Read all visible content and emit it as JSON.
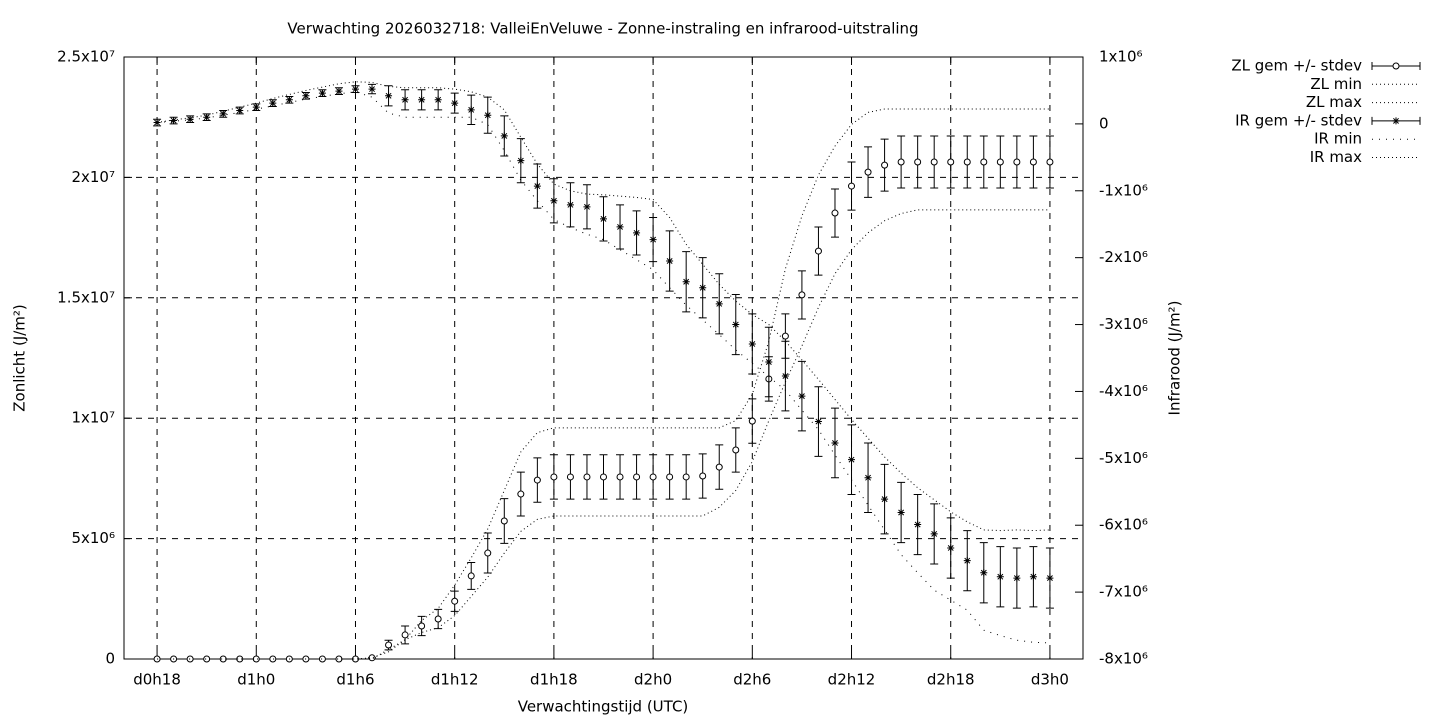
{
  "chart_data": {
    "type": "errorbar",
    "title": "Verwachting 2026032718: ValleiEnVeluwe - Zonne-instraling en infrarood-uitstraling",
    "xlabel": "Verwachtingstijd (UTC)",
    "ylabel": "Zonlicht (J/m²)",
    "y2label": "Infrarood (J/m²)",
    "x": [
      18,
      19,
      20,
      21,
      22,
      23,
      24,
      25,
      26,
      27,
      28,
      29,
      30,
      31,
      32,
      33,
      34,
      35,
      36,
      37,
      38,
      39,
      40,
      41,
      42,
      43,
      44,
      45,
      46,
      47,
      48,
      49,
      50,
      51,
      52,
      53,
      54,
      55,
      56,
      57,
      58,
      59,
      60,
      61,
      62,
      63,
      64,
      65,
      66,
      67,
      68,
      69,
      70,
      71,
      72
    ],
    "xlim": [
      16,
      74
    ],
    "xticks": [
      {
        "value": 18,
        "label": "d0h18"
      },
      {
        "value": 24,
        "label": "d1h0"
      },
      {
        "value": 30,
        "label": "d1h6"
      },
      {
        "value": 36,
        "label": "d1h12"
      },
      {
        "value": 42,
        "label": "d1h18"
      },
      {
        "value": 48,
        "label": "d2h0"
      },
      {
        "value": 54,
        "label": "d2h6"
      },
      {
        "value": 60,
        "label": "d2h12"
      },
      {
        "value": 66,
        "label": "d2h18"
      },
      {
        "value": 72,
        "label": "d3h0"
      }
    ],
    "ylim": [
      0,
      25000000
    ],
    "yticks": [
      0,
      {
        "value": 5000000,
        "label": "5x10⁶"
      },
      {
        "value": 10000000,
        "label": "1x10⁷"
      },
      {
        "value": 15000000,
        "label": "1.5x10⁷"
      },
      {
        "value": 20000000,
        "label": "2x10⁷"
      },
      {
        "value": 25000000,
        "label": "2.5x10⁷"
      }
    ],
    "y2lim": [
      -8000000,
      1000000
    ],
    "y2ticks": [
      {
        "value": -8000000,
        "label": "-8x10⁶"
      },
      {
        "value": -7000000,
        "label": "-7x10⁶"
      },
      {
        "value": -6000000,
        "label": "-6x10⁶"
      },
      {
        "value": -5000000,
        "label": "-5x10⁶"
      },
      {
        "value": -4000000,
        "label": "-4x10⁶"
      },
      {
        "value": -3000000,
        "label": "-3x10⁶"
      },
      {
        "value": -2000000,
        "label": "-2x10⁶"
      },
      {
        "value": -1000000,
        "label": "-1x10⁶"
      },
      0,
      {
        "value": 1000000,
        "label": "1x10⁶"
      }
    ],
    "grid": true,
    "legend_position": "outside-top-right",
    "series": [
      {
        "name": "ZL gem +/- stdev",
        "color": "#000000",
        "axis": "y",
        "marker": "circle",
        "style": "errorbar",
        "values": [
          0,
          0,
          0,
          0,
          0,
          0,
          0,
          0,
          0,
          0,
          0,
          0,
          0,
          50000,
          580000,
          1000000,
          1370000,
          1660000,
          2400000,
          3450000,
          4400000,
          5730000,
          6850000,
          7430000,
          7560000,
          7560000,
          7560000,
          7560000,
          7560000,
          7560000,
          7560000,
          7560000,
          7560000,
          7600000,
          7970000,
          8680000,
          9880000,
          11630000,
          13410000,
          15120000,
          16940000,
          18520000,
          19640000,
          20220000,
          20510000,
          20640000,
          20640000,
          20640000,
          20640000,
          20640000,
          20640000,
          20640000,
          20640000,
          20640000,
          20640000
        ],
        "errors": [
          0,
          0,
          0,
          0,
          0,
          0,
          0,
          0,
          0,
          0,
          0,
          0,
          0,
          0,
          200000,
          370000,
          400000,
          400000,
          420000,
          560000,
          830000,
          930000,
          910000,
          920000,
          920000,
          920000,
          920000,
          920000,
          920000,
          920000,
          920000,
          920000,
          920000,
          920000,
          920000,
          920000,
          920000,
          920000,
          920000,
          1000000,
          1000000,
          1000000,
          1000000,
          1050000,
          1080000,
          1080000,
          1080000,
          1080000,
          1080000,
          1080000,
          1080000,
          1080000,
          1080000,
          1080000,
          1080000
        ]
      },
      {
        "name": "ZL min",
        "color": "#000000",
        "axis": "y",
        "style": "dotted",
        "values": [
          0,
          0,
          0,
          0,
          0,
          0,
          0,
          0,
          0,
          0,
          0,
          0,
          0,
          0,
          400000,
          800000,
          1100000,
          1300000,
          1800000,
          2600000,
          3400000,
          4400000,
          5300000,
          5800000,
          5940000,
          5940000,
          5940000,
          5940000,
          5940000,
          5940000,
          5940000,
          5940000,
          5940000,
          5940000,
          6300000,
          7000000,
          8200000,
          9900000,
          11500000,
          13000000,
          14600000,
          16000000,
          17000000,
          17700000,
          18200000,
          18500000,
          18650000,
          18650000,
          18650000,
          18650000,
          18650000,
          18650000,
          18650000,
          18650000,
          18650000
        ]
      },
      {
        "name": "ZL max",
        "color": "#000000",
        "axis": "y",
        "style": "dotted",
        "values": [
          0,
          0,
          0,
          0,
          0,
          0,
          0,
          0,
          0,
          0,
          0,
          0,
          0,
          50000,
          300000,
          800000,
          1600000,
          2100000,
          3070000,
          4200000,
          5400000,
          7000000,
          8600000,
          9400000,
          9600000,
          9600000,
          9600000,
          9600000,
          9600000,
          9600000,
          9600000,
          9600000,
          9600000,
          9600000,
          9600000,
          9900000,
          11000000,
          13200000,
          16200000,
          18400000,
          20100000,
          21300000,
          22200000,
          22700000,
          22840000,
          22840000,
          22840000,
          22840000,
          22840000,
          22840000,
          22840000,
          22840000,
          22840000,
          22840000,
          22840000
        ]
      },
      {
        "name": "IR gem +/- stdev",
        "color": "#000000",
        "axis": "y2",
        "marker": "star",
        "style": "errorbar",
        "values": [
          20000,
          50000,
          70000,
          100000,
          150000,
          200000,
          250000,
          310000,
          360000,
          420000,
          460000,
          490000,
          520000,
          520000,
          420000,
          360000,
          360000,
          360000,
          310000,
          210000,
          130000,
          -180000,
          -550000,
          -930000,
          -1150000,
          -1210000,
          -1240000,
          -1420000,
          -1540000,
          -1630000,
          -1730000,
          -2050000,
          -2360000,
          -2450000,
          -2690000,
          -3000000,
          -3290000,
          -3560000,
          -3770000,
          -4070000,
          -4450000,
          -4770000,
          -5020000,
          -5290000,
          -5610000,
          -5810000,
          -5990000,
          -6130000,
          -6340000,
          -6530000,
          -6710000,
          -6770000,
          -6790000,
          -6770000,
          -6790000
        ],
        "errors": [
          50000,
          50000,
          50000,
          50000,
          50000,
          50000,
          50000,
          50000,
          50000,
          50000,
          50000,
          50000,
          50000,
          70000,
          150000,
          150000,
          150000,
          150000,
          150000,
          220000,
          270000,
          300000,
          330000,
          330000,
          330000,
          330000,
          330000,
          330000,
          330000,
          330000,
          330000,
          450000,
          450000,
          450000,
          450000,
          450000,
          450000,
          520000,
          520000,
          520000,
          520000,
          520000,
          520000,
          520000,
          520000,
          450000,
          450000,
          450000,
          450000,
          450000,
          450000,
          450000,
          450000,
          450000,
          450000
        ]
      },
      {
        "name": "IR min",
        "color": "#000000",
        "axis": "y2",
        "style": "sparse-dotted",
        "values": [
          20000,
          40000,
          60000,
          90000,
          130000,
          170000,
          220000,
          270000,
          320000,
          370000,
          410000,
          450000,
          480000,
          400000,
          160000,
          100000,
          100000,
          100000,
          100000,
          100000,
          -10000,
          -400000,
          -840000,
          -1150000,
          -1430000,
          -1550000,
          -1650000,
          -1730000,
          -1880000,
          -2030000,
          -2180000,
          -2450000,
          -2710000,
          -2930000,
          -3150000,
          -3380000,
          -3580000,
          -3780000,
          -3980000,
          -4280000,
          -4570000,
          -4950000,
          -5320000,
          -5700000,
          -6070000,
          -6440000,
          -6710000,
          -6970000,
          -7120000,
          -7270000,
          -7570000,
          -7650000,
          -7720000,
          -7750000,
          -7760000
        ]
      },
      {
        "name": "IR max",
        "color": "#000000",
        "axis": "y2",
        "style": "dotted",
        "values": [
          20000,
          60000,
          90000,
          130000,
          190000,
          250000,
          310000,
          380000,
          440000,
          500000,
          550000,
          600000,
          630000,
          620000,
          560000,
          540000,
          540000,
          540000,
          520000,
          480000,
          400000,
          210000,
          -200000,
          -600000,
          -900000,
          -1000000,
          -1050000,
          -1060000,
          -1080000,
          -1100000,
          -1130000,
          -1400000,
          -1800000,
          -2100000,
          -2400000,
          -2650000,
          -2850000,
          -3000000,
          -3250000,
          -3530000,
          -3820000,
          -4120000,
          -4420000,
          -4700000,
          -4980000,
          -5220000,
          -5440000,
          -5620000,
          -5800000,
          -5950000,
          -6070000,
          -6080000,
          -6070000,
          -6080000,
          -6070000
        ]
      }
    ]
  }
}
